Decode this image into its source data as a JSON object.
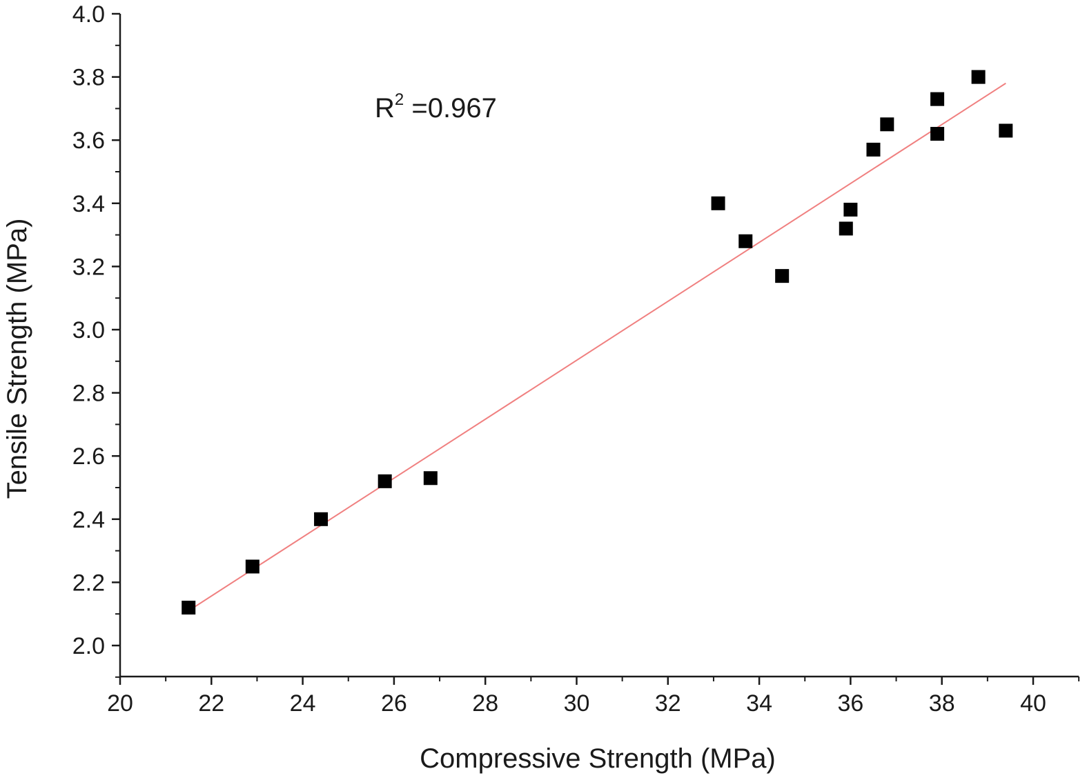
{
  "chart_data": {
    "type": "scatter",
    "xlabel": "Compressive Strength (MPa)",
    "ylabel": "Tensile Strength (MPa)",
    "xlim": [
      20,
      41
    ],
    "ylim": [
      1.9,
      4.0
    ],
    "xticks": [
      20,
      22,
      24,
      26,
      28,
      30,
      32,
      34,
      36,
      38,
      40
    ],
    "yticks": [
      2.0,
      2.2,
      2.4,
      2.6,
      2.8,
      3.0,
      3.2,
      3.4,
      3.6,
      3.8,
      4.0
    ],
    "x_tick_labels": [
      "20",
      "22",
      "24",
      "26",
      "28",
      "30",
      "32",
      "34",
      "36",
      "38",
      "40"
    ],
    "y_tick_labels": [
      "2.0",
      "2.2",
      "2.4",
      "2.6",
      "2.8",
      "3.0",
      "3.2",
      "3.4",
      "3.6",
      "3.8",
      "4.0"
    ],
    "grid": false,
    "annotation": {
      "base": "R",
      "sup": "2",
      "text": " =0.967"
    },
    "points": [
      {
        "x": 21.5,
        "y": 2.12
      },
      {
        "x": 22.9,
        "y": 2.25
      },
      {
        "x": 24.4,
        "y": 2.4
      },
      {
        "x": 25.8,
        "y": 2.52
      },
      {
        "x": 26.8,
        "y": 2.53
      },
      {
        "x": 33.1,
        "y": 3.4
      },
      {
        "x": 33.7,
        "y": 3.28
      },
      {
        "x": 34.5,
        "y": 3.17
      },
      {
        "x": 35.9,
        "y": 3.32
      },
      {
        "x": 36.0,
        "y": 3.38
      },
      {
        "x": 36.5,
        "y": 3.57
      },
      {
        "x": 36.8,
        "y": 3.65
      },
      {
        "x": 37.9,
        "y": 3.73
      },
      {
        "x": 37.9,
        "y": 3.62
      },
      {
        "x": 38.8,
        "y": 3.8
      },
      {
        "x": 39.4,
        "y": 3.63
      }
    ],
    "fit_line": {
      "x": [
        21.5,
        39.4
      ],
      "y": [
        2.11,
        3.78
      ]
    },
    "colors": {
      "marker": "#000000",
      "fit": "#f08080",
      "axis": "#1a1a1a"
    }
  }
}
